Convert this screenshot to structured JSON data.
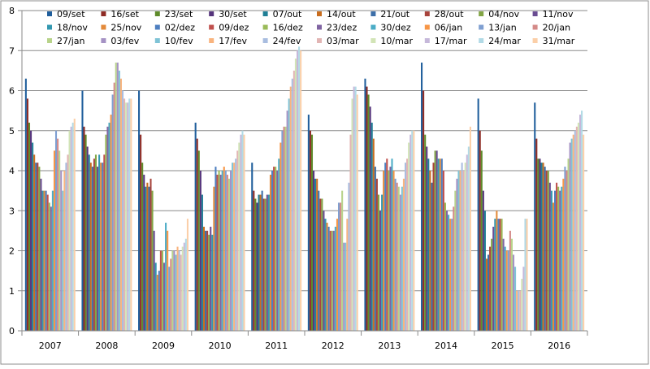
{
  "chart_data": {
    "type": "bar",
    "title": "",
    "xlabel": "",
    "ylabel": "",
    "ylim": [
      0,
      8
    ],
    "y_ticks": [
      "0",
      "1",
      "2",
      "3",
      "4",
      "5",
      "6",
      "7",
      "8"
    ],
    "grid": "horizontal",
    "legend_position": "top",
    "categories": [
      "2007",
      "2008",
      "2009",
      "2010",
      "2011",
      "2012",
      "2013",
      "2014",
      "2015",
      "2016"
    ],
    "series": [
      {
        "name": "09/set",
        "color": "#1f5e9c",
        "values": [
          6.3,
          6.0,
          6.0,
          5.2,
          4.2,
          5.4,
          6.3,
          6.7,
          5.8,
          5.7
        ]
      },
      {
        "name": "16/set",
        "color": "#8e2b24",
        "values": [
          5.8,
          5.1,
          4.9,
          4.8,
          3.5,
          5.0,
          6.1,
          6.0,
          5.0,
          4.8
        ]
      },
      {
        "name": "23/set",
        "color": "#5e8b2a",
        "values": [
          5.2,
          4.9,
          4.2,
          4.5,
          3.3,
          4.9,
          5.9,
          4.9,
          4.5,
          4.3
        ]
      },
      {
        "name": "30/set",
        "color": "#55347c",
        "values": [
          5.0,
          4.6,
          3.9,
          4.0,
          3.2,
          4.0,
          5.6,
          4.6,
          3.5,
          4.3
        ]
      },
      {
        "name": "07/out",
        "color": "#1f7f96",
        "values": [
          4.7,
          4.4,
          3.6,
          3.4,
          3.4,
          3.8,
          5.2,
          4.3,
          3.0,
          4.2
        ]
      },
      {
        "name": "14/out",
        "color": "#c96d1e",
        "values": [
          4.4,
          4.2,
          3.7,
          2.6,
          3.4,
          3.8,
          4.8,
          4.0,
          1.8,
          4.2
        ]
      },
      {
        "name": "21/out",
        "color": "#3c6ea8",
        "values": [
          4.2,
          4.1,
          3.6,
          2.5,
          3.5,
          3.5,
          4.1,
          3.7,
          1.9,
          4.1
        ]
      },
      {
        "name": "28/out",
        "color": "#a8443c",
        "values": [
          4.2,
          4.3,
          3.8,
          2.5,
          3.3,
          3.3,
          3.8,
          4.2,
          2.1,
          4.0
        ]
      },
      {
        "name": "04/nov",
        "color": "#82a544",
        "values": [
          4.1,
          4.4,
          3.5,
          2.4,
          3.3,
          3.3,
          3.4,
          4.5,
          2.3,
          4.0
        ]
      },
      {
        "name": "11/nov",
        "color": "#6a4c92",
        "values": [
          3.8,
          4.1,
          2.5,
          2.6,
          3.4,
          3.0,
          3.0,
          4.5,
          2.6,
          3.7
        ]
      },
      {
        "name": "18/nov",
        "color": "#3398b0",
        "values": [
          3.5,
          4.4,
          1.7,
          2.4,
          3.4,
          2.8,
          3.4,
          4.3,
          2.8,
          3.5
        ]
      },
      {
        "name": "25/nov",
        "color": "#e38a3a",
        "values": [
          3.5,
          4.2,
          1.4,
          3.6,
          3.9,
          2.7,
          4.0,
          4.3,
          3.0,
          3.2
        ]
      },
      {
        "name": "02/dez",
        "color": "#4e7fc0",
        "values": [
          3.5,
          4.2,
          1.5,
          4.1,
          4.0,
          2.6,
          4.2,
          4.3,
          2.8,
          3.5
        ]
      },
      {
        "name": "09/dez",
        "color": "#c0504d",
        "values": [
          3.4,
          4.4,
          2.0,
          3.9,
          4.1,
          2.5,
          4.3,
          4.0,
          2.8,
          3.7
        ]
      },
      {
        "name": "16/dez",
        "color": "#9bbb59",
        "values": [
          3.2,
          4.9,
          2.0,
          4.0,
          4.1,
          2.5,
          4.0,
          3.2,
          2.8,
          3.6
        ]
      },
      {
        "name": "23/dez",
        "color": "#8064a2",
        "values": [
          3.1,
          5.1,
          1.7,
          3.9,
          4.0,
          2.5,
          4.1,
          3.0,
          2.3,
          3.5
        ]
      },
      {
        "name": "30/dez",
        "color": "#4bacc6",
        "values": [
          3.5,
          5.2,
          2.7,
          4.0,
          4.3,
          2.6,
          4.3,
          2.9,
          2.1,
          3.6
        ]
      },
      {
        "name": "06/jan",
        "color": "#f79646",
        "values": [
          4.5,
          5.4,
          2.5,
          4.1,
          4.7,
          2.8,
          4.0,
          2.8,
          2.0,
          3.8
        ]
      },
      {
        "name": "13/jan",
        "color": "#7f9fd1",
        "values": [
          5.0,
          5.9,
          1.6,
          4.0,
          5.0,
          3.2,
          3.8,
          2.8,
          2.0,
          4.1
        ]
      },
      {
        "name": "20/jan",
        "color": "#d48a88",
        "values": [
          4.8,
          6.2,
          1.8,
          3.9,
          5.1,
          3.2,
          3.7,
          3.1,
          2.5,
          4.0
        ]
      },
      {
        "name": "27/jan",
        "color": "#b8d38a",
        "values": [
          4.5,
          6.7,
          2.0,
          3.8,
          5.1,
          3.5,
          3.6,
          3.5,
          2.3,
          4.3
        ]
      },
      {
        "name": "03/fev",
        "color": "#a592c4",
        "values": [
          4.0,
          6.7,
          2.0,
          4.0,
          5.5,
          2.2,
          3.4,
          3.8,
          1.9,
          4.7
        ]
      },
      {
        "name": "10/fev",
        "color": "#7fc3d6",
        "values": [
          3.5,
          6.5,
          1.9,
          4.2,
          5.8,
          2.2,
          3.6,
          4.0,
          1.6,
          4.8
        ]
      },
      {
        "name": "17/fev",
        "color": "#f9b47e",
        "values": [
          4.0,
          6.3,
          2.1,
          4.2,
          6.1,
          2.8,
          3.8,
          4.0,
          1.0,
          4.9
        ]
      },
      {
        "name": "24/fev",
        "color": "#a9bde0",
        "values": [
          4.2,
          6.0,
          2.0,
          4.3,
          6.3,
          3.7,
          4.2,
          4.2,
          1.0,
          5.0
        ]
      },
      {
        "name": "03/mar",
        "color": "#e2b5b4",
        "values": [
          4.4,
          5.8,
          1.9,
          4.5,
          6.5,
          4.9,
          4.3,
          4.0,
          1.0,
          5.1
        ]
      },
      {
        "name": "10/mar",
        "color": "#d2e4b6",
        "values": [
          5.0,
          5.7,
          2.1,
          4.7,
          6.8,
          5.8,
          4.7,
          4.2,
          1.3,
          5.2
        ]
      },
      {
        "name": "17/mar",
        "color": "#c6b8da",
        "values": [
          5.1,
          5.7,
          2.2,
          4.9,
          7.0,
          6.1,
          4.9,
          4.4,
          1.6,
          5.4
        ]
      },
      {
        "name": "24/mar",
        "color": "#b1dae6",
        "values": [
          5.2,
          5.8,
          2.3,
          5.0,
          7.1,
          6.1,
          5.0,
          4.6,
          2.8,
          5.5
        ]
      },
      {
        "name": "31/mar",
        "color": "#fbcfa8",
        "values": [
          5.3,
          5.8,
          2.8,
          4.9,
          7.0,
          5.9,
          5.0,
          5.1,
          2.8,
          4.9
        ]
      }
    ]
  }
}
